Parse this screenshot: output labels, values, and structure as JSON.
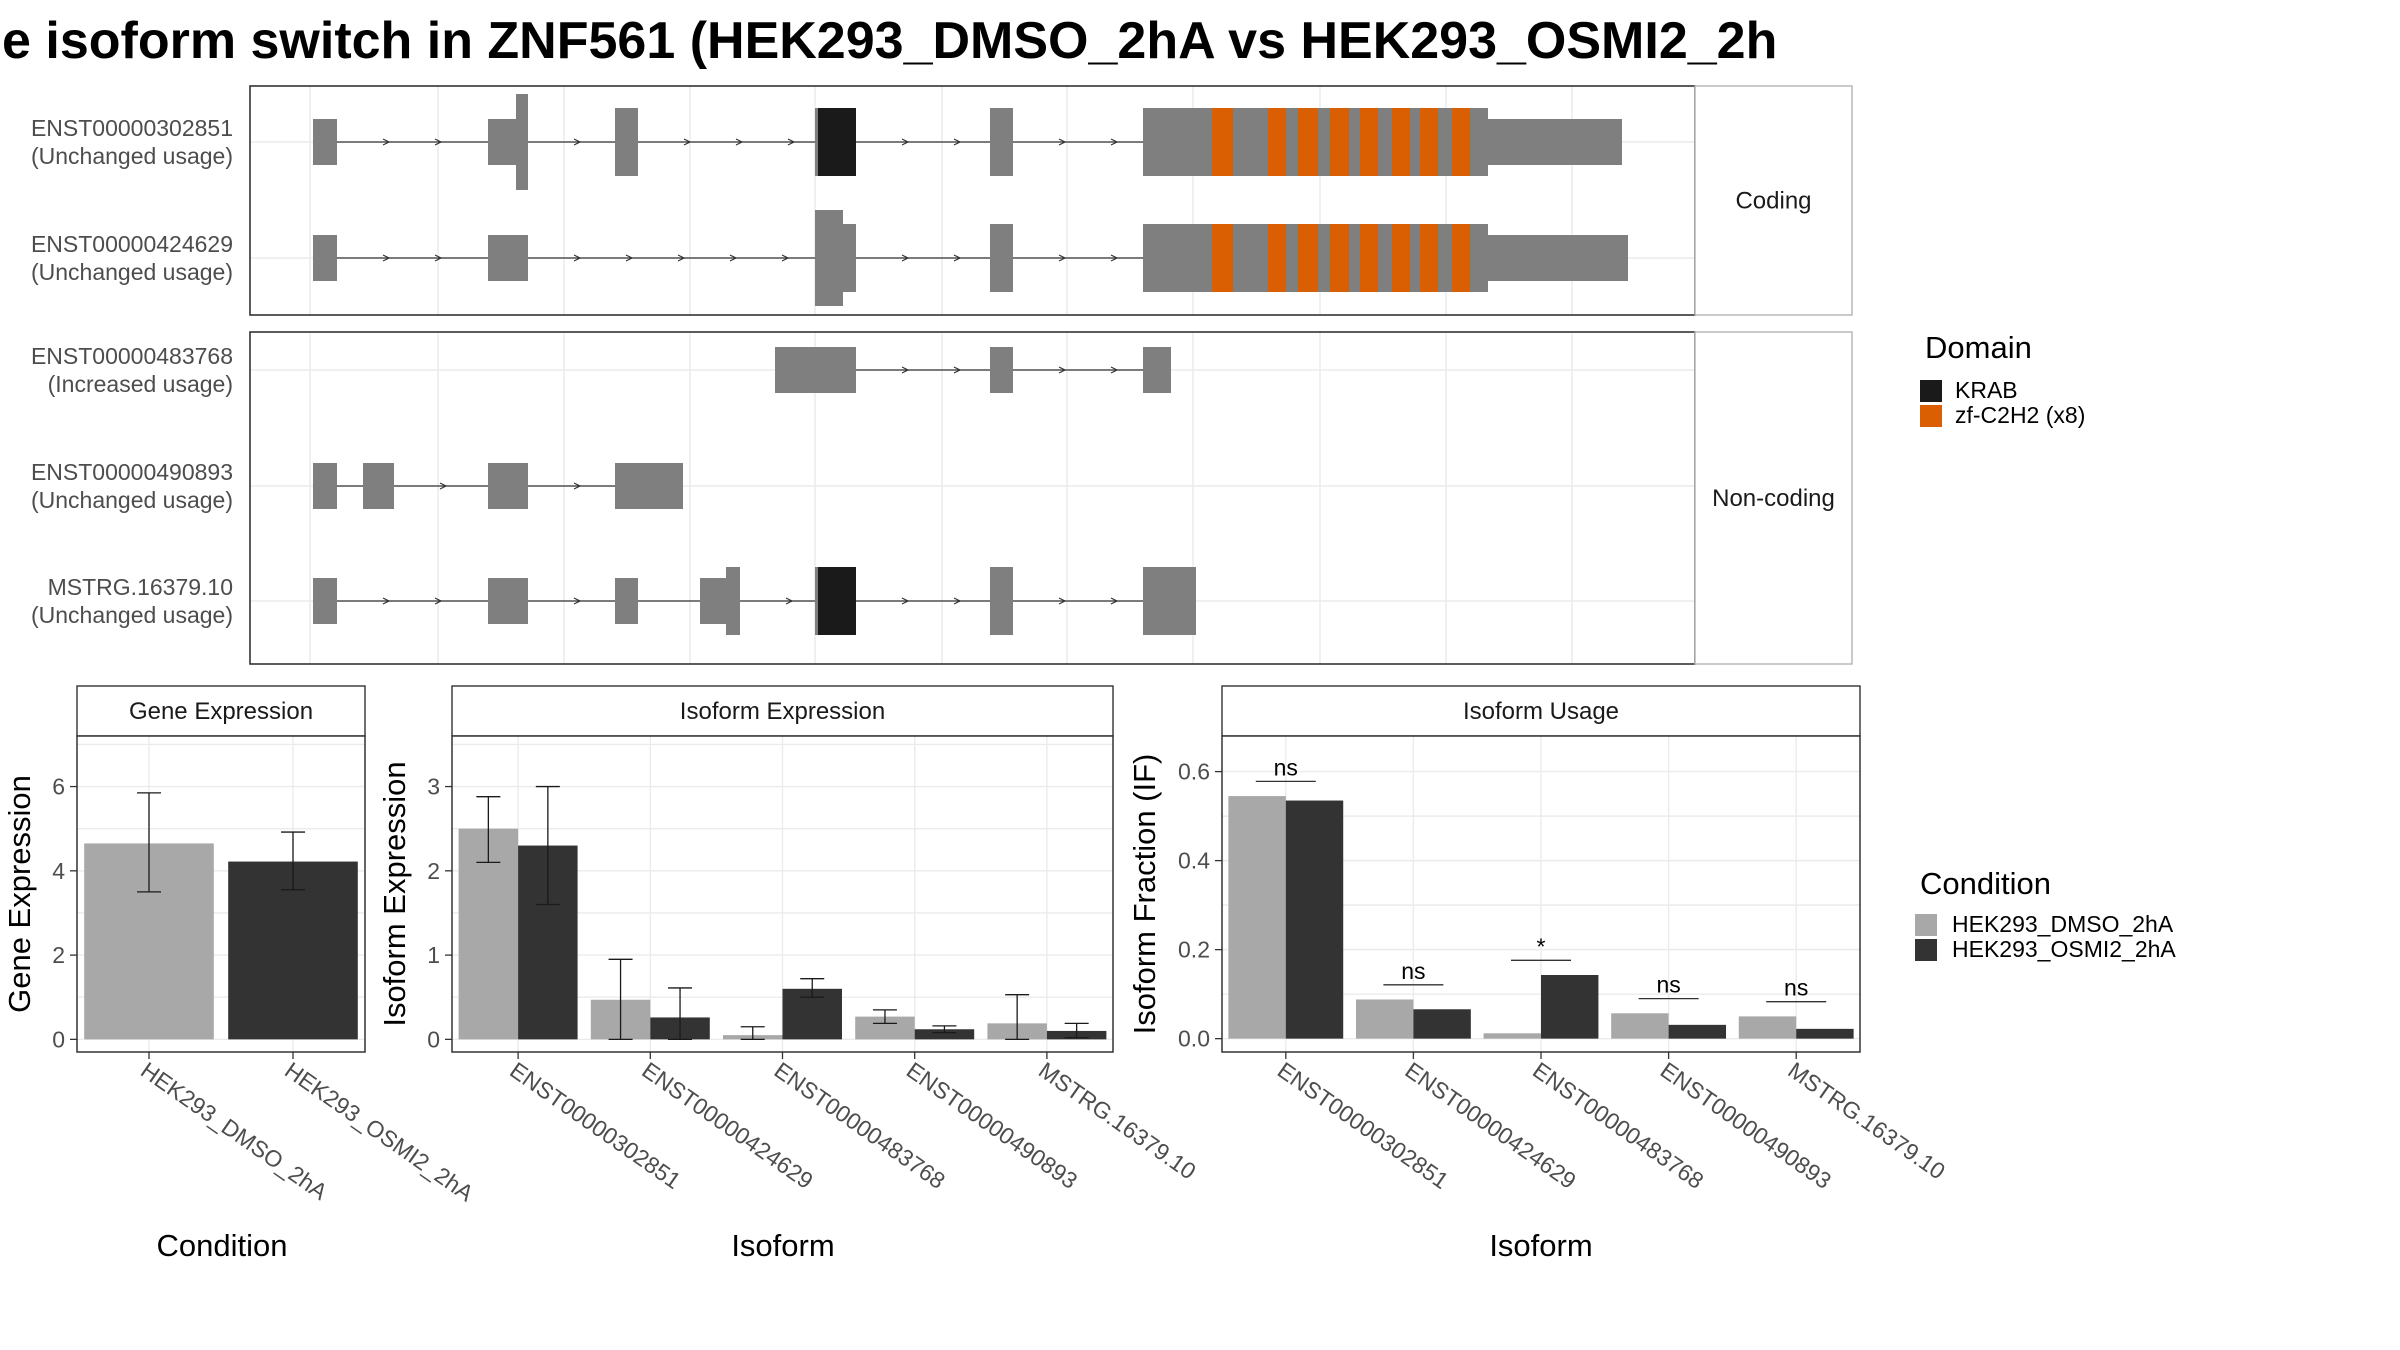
{
  "title": "e isoform switch in ZNF561 (HEK293_DMSO_2hA vs HEK293_OSMI2_2h",
  "colors": {
    "exon": "#7f7f7f",
    "KRAB": "#1a1a1a",
    "zf": "#d95f02",
    "dmso": "#a8a8a8",
    "osmi": "#333333",
    "grid": "#ebebeb"
  },
  "structure": {
    "facets": [
      {
        "label": "Coding",
        "transcripts": [
          {
            "id": "ENST00000302851",
            "usage": "(Unchanged usage)"
          },
          {
            "id": "ENST00000424629",
            "usage": "(Unchanged usage)"
          }
        ]
      },
      {
        "label": "Non-coding",
        "transcripts": [
          {
            "id": "ENST00000483768",
            "usage": "(Increased usage)"
          },
          {
            "id": "ENST00000490893",
            "usage": "(Unchanged usage)"
          },
          {
            "id": "MSTRG.16379.10",
            "usage": "(Unchanged usage)"
          }
        ]
      }
    ],
    "legend_title": "Domain",
    "domains": [
      {
        "name": "KRAB",
        "color": "#1a1a1a"
      },
      {
        "name": "zf-C2H2 (x8)",
        "color": "#d95f02"
      }
    ]
  },
  "condition_legend": {
    "title": "Condition",
    "items": [
      {
        "name": "HEK293_DMSO_2hA",
        "color": "#a8a8a8"
      },
      {
        "name": "HEK293_OSMI2_2hA",
        "color": "#333333"
      }
    ]
  },
  "chart_data": [
    {
      "type": "bar",
      "panel": "Gene Expression",
      "xlabel": "Condition",
      "ylabel": "Gene Expression",
      "ylim": [
        -0.3,
        7.2
      ],
      "yticks": [
        0,
        2,
        4,
        6
      ],
      "categories": [
        "HEK293_DMSO_2hA",
        "HEK293_OSMI2_2hA"
      ],
      "values": [
        4.65,
        4.22
      ],
      "err_low": [
        3.5,
        3.55
      ],
      "err_high": [
        5.85,
        4.92
      ]
    },
    {
      "type": "bar",
      "panel": "Isoform Expression",
      "xlabel": "Isoform",
      "ylabel": "Isoform Expression",
      "ylim": [
        -0.15,
        3.6
      ],
      "yticks": [
        0,
        1,
        2,
        3
      ],
      "categories": [
        "ENST00000302851",
        "ENST00000424629",
        "ENST00000483768",
        "ENST00000490893",
        "MSTRG.16379.10"
      ],
      "series": [
        {
          "name": "HEK293_DMSO_2hA",
          "values": [
            2.5,
            0.47,
            0.05,
            0.27,
            0.19
          ],
          "err_low": [
            2.1,
            0.0,
            0.0,
            0.19,
            0.0
          ],
          "err_high": [
            2.88,
            0.95,
            0.15,
            0.35,
            0.53
          ]
        },
        {
          "name": "HEK293_OSMI2_2hA",
          "values": [
            2.3,
            0.26,
            0.6,
            0.12,
            0.1
          ],
          "err_low": [
            1.6,
            0.0,
            0.5,
            0.08,
            0.02
          ],
          "err_high": [
            3.0,
            0.61,
            0.72,
            0.16,
            0.19
          ]
        }
      ]
    },
    {
      "type": "bar",
      "panel": "Isoform Usage",
      "xlabel": "Isoform",
      "ylabel": "Isoform Fraction (IF)",
      "ylim": [
        -0.03,
        0.68
      ],
      "yticks": [
        "0.0",
        "0.2",
        "0.4",
        "0.6"
      ],
      "categories": [
        "ENST00000302851",
        "ENST00000424629",
        "ENST00000483768",
        "ENST00000490893",
        "MSTRG.16379.10"
      ],
      "series": [
        {
          "name": "HEK293_DMSO_2hA",
          "values": [
            0.545,
            0.088,
            0.012,
            0.057,
            0.05
          ]
        },
        {
          "name": "HEK293_OSMI2_2hA",
          "values": [
            0.535,
            0.066,
            0.143,
            0.031,
            0.022
          ]
        }
      ],
      "significance": [
        "ns",
        "ns",
        "*",
        "ns",
        "ns"
      ],
      "significance_y": [
        0.578,
        0.121,
        0.176,
        0.09,
        0.083
      ]
    }
  ]
}
